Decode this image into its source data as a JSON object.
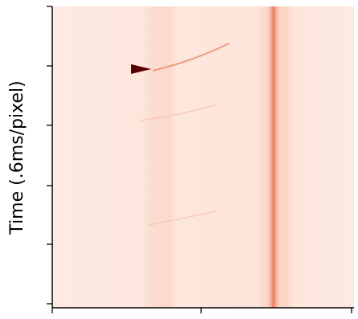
{
  "chart_data": {
    "type": "heatmap",
    "ylabel": "Time (.6ms/pixel)"
  }
}
